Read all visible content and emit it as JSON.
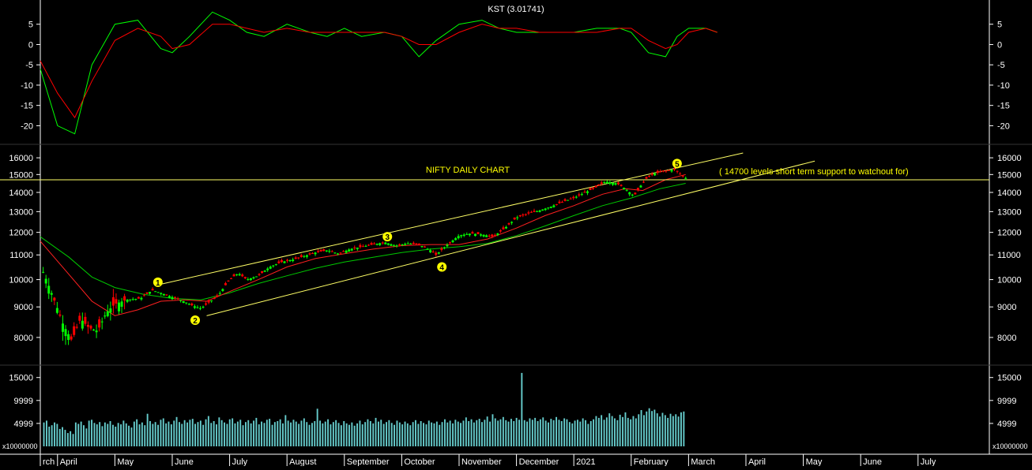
{
  "colors": {
    "background": "#000000",
    "axis": "#ffffff",
    "up_candle": "#00ff00",
    "down_candle": "#ff0000",
    "kst_line": "#00ff00",
    "kst_signal": "#ff0000",
    "ma_short": "#ff2020",
    "ma_long": "#00c800",
    "channel": "#ffff66",
    "volume": "#66cccc",
    "annotation": "#ffff00"
  },
  "chart_data": [
    {
      "type": "line",
      "panel": "kst",
      "title": "KST (3.01741)",
      "ylim": [
        -24,
        10
      ],
      "yticks": [
        5,
        0,
        -5,
        -10,
        -15,
        -20
      ],
      "x_months": [
        2.7,
        3,
        3.3,
        3.6,
        4,
        4.4,
        4.8,
        5,
        5.3,
        5.7,
        6,
        6.3,
        6.6,
        7,
        7.4,
        7.7,
        8,
        8.3,
        8.7,
        9,
        9.3,
        9.6,
        10,
        10.4,
        10.7,
        11,
        11.4,
        11.8,
        12,
        12.4,
        12.8,
        13,
        13.3,
        13.6,
        13.8,
        14,
        14.3,
        14.5
      ],
      "series": [
        {
          "values": [
            -6,
            -20,
            -22,
            -5,
            5,
            6,
            -1,
            -2,
            2,
            8,
            6,
            3,
            2,
            5,
            3,
            2,
            4,
            2,
            3,
            2,
            -3,
            1,
            5,
            6,
            4,
            3,
            3,
            3,
            3,
            4,
            4,
            3,
            -2,
            -3,
            2,
            4,
            4,
            3
          ]
        },
        {
          "values": [
            -4,
            -12,
            -18,
            -9,
            1,
            4,
            2,
            -1,
            0,
            5,
            5,
            4,
            3,
            4,
            3,
            3,
            3,
            3,
            3,
            2,
            0,
            0,
            3,
            5,
            4,
            4,
            3,
            3,
            3,
            3,
            4,
            4,
            1,
            -1,
            0,
            3,
            4,
            3
          ]
        }
      ]
    },
    {
      "type": "candlestick",
      "panel": "price",
      "title": "NIFTY DAILY CHART",
      "ylim": [
        7300,
        16600
      ],
      "yscale": "log",
      "yticks": [
        16000,
        15000,
        14000,
        13000,
        12000,
        11000,
        10000,
        9000,
        8000
      ],
      "points": [
        {
          "m": 2.75,
          "v": 10300
        },
        {
          "m": 2.95,
          "v": 9200
        },
        {
          "m": 3.1,
          "v": 8400
        },
        {
          "m": 3.25,
          "v": 7900
        },
        {
          "m": 3.4,
          "v": 8600
        },
        {
          "m": 3.55,
          "v": 8300
        },
        {
          "m": 3.7,
          "v": 8200
        },
        {
          "m": 3.85,
          "v": 8800
        },
        {
          "m": 4.0,
          "v": 9100
        },
        {
          "m": 4.2,
          "v": 9250
        },
        {
          "m": 4.45,
          "v": 9300
        },
        {
          "m": 4.65,
          "v": 9600
        },
        {
          "m": 4.8,
          "v": 9500
        },
        {
          "m": 5.0,
          "v": 9350
        },
        {
          "m": 5.2,
          "v": 9200
        },
        {
          "m": 5.35,
          "v": 9050
        },
        {
          "m": 5.5,
          "v": 8950
        },
        {
          "m": 5.6,
          "v": 9100
        },
        {
          "m": 5.8,
          "v": 9400
        },
        {
          "m": 6.0,
          "v": 10000
        },
        {
          "m": 6.15,
          "v": 10250
        },
        {
          "m": 6.3,
          "v": 10000
        },
        {
          "m": 6.5,
          "v": 10150
        },
        {
          "m": 6.7,
          "v": 10500
        },
        {
          "m": 6.9,
          "v": 10700
        },
        {
          "m": 7.1,
          "v": 10800
        },
        {
          "m": 7.3,
          "v": 10950
        },
        {
          "m": 7.5,
          "v": 11100
        },
        {
          "m": 7.7,
          "v": 11200
        },
        {
          "m": 7.9,
          "v": 11050
        },
        {
          "m": 8.1,
          "v": 11250
        },
        {
          "m": 8.3,
          "v": 11350
        },
        {
          "m": 8.5,
          "v": 11450
        },
        {
          "m": 8.7,
          "v": 11550
        },
        {
          "m": 8.9,
          "v": 11400
        },
        {
          "m": 9.1,
          "v": 11500
        },
        {
          "m": 9.3,
          "v": 11450
        },
        {
          "m": 9.5,
          "v": 11200
        },
        {
          "m": 9.6,
          "v": 11000
        },
        {
          "m": 9.8,
          "v": 11450
        },
        {
          "m": 10.0,
          "v": 11850
        },
        {
          "m": 10.2,
          "v": 11950
        },
        {
          "m": 10.4,
          "v": 11900
        },
        {
          "m": 10.6,
          "v": 11800
        },
        {
          "m": 10.8,
          "v": 12200
        },
        {
          "m": 11.0,
          "v": 12700
        },
        {
          "m": 11.2,
          "v": 12900
        },
        {
          "m": 11.4,
          "v": 13050
        },
        {
          "m": 11.6,
          "v": 13250
        },
        {
          "m": 11.8,
          "v": 13500
        },
        {
          "m": 12.0,
          "v": 13700
        },
        {
          "m": 12.2,
          "v": 14000
        },
        {
          "m": 12.4,
          "v": 14300
        },
        {
          "m": 12.55,
          "v": 14600
        },
        {
          "m": 12.75,
          "v": 14500
        },
        {
          "m": 12.9,
          "v": 14200
        },
        {
          "m": 13.05,
          "v": 13800
        },
        {
          "m": 13.15,
          "v": 14300
        },
        {
          "m": 13.3,
          "v": 14900
        },
        {
          "m": 13.45,
          "v": 15100
        },
        {
          "m": 13.6,
          "v": 15200
        },
        {
          "m": 13.75,
          "v": 15300
        },
        {
          "m": 13.85,
          "v": 15050
        },
        {
          "m": 13.95,
          "v": 14800
        }
      ],
      "ma_short": [
        [
          2.7,
          11600
        ],
        [
          3.2,
          10200
        ],
        [
          3.6,
          9200
        ],
        [
          4.0,
          8700
        ],
        [
          4.4,
          8900
        ],
        [
          4.8,
          9200
        ],
        [
          5.2,
          9250
        ],
        [
          5.6,
          9200
        ],
        [
          6.0,
          9550
        ],
        [
          6.5,
          10000
        ],
        [
          7.0,
          10500
        ],
        [
          7.5,
          10850
        ],
        [
          8.0,
          11050
        ],
        [
          8.5,
          11250
        ],
        [
          9.0,
          11400
        ],
        [
          9.5,
          11450
        ],
        [
          10.0,
          11450
        ],
        [
          10.5,
          11700
        ],
        [
          11.0,
          12200
        ],
        [
          11.5,
          12800
        ],
        [
          12.0,
          13300
        ],
        [
          12.5,
          13900
        ],
        [
          12.9,
          14200
        ],
        [
          13.2,
          14100
        ],
        [
          13.6,
          14700
        ],
        [
          13.95,
          15000
        ]
      ],
      "ma_long": [
        [
          2.7,
          11800
        ],
        [
          3.2,
          10900
        ],
        [
          3.6,
          10100
        ],
        [
          4.0,
          9700
        ],
        [
          4.5,
          9450
        ],
        [
          5.0,
          9300
        ],
        [
          5.5,
          9250
        ],
        [
          6.0,
          9500
        ],
        [
          6.5,
          9850
        ],
        [
          7.0,
          10150
        ],
        [
          7.5,
          10450
        ],
        [
          8.0,
          10700
        ],
        [
          8.5,
          10900
        ],
        [
          9.0,
          11100
        ],
        [
          9.5,
          11250
        ],
        [
          10.0,
          11350
        ],
        [
          10.5,
          11500
        ],
        [
          11.0,
          11850
        ],
        [
          11.5,
          12300
        ],
        [
          12.0,
          12800
        ],
        [
          12.5,
          13300
        ],
        [
          13.0,
          13700
        ],
        [
          13.5,
          14200
        ],
        [
          13.95,
          14500
        ]
      ],
      "channel_upper": [
        [
          4.75,
          9800
        ],
        [
          14.95,
          16300
        ]
      ],
      "channel_lower": [
        [
          5.6,
          8700
        ],
        [
          16.2,
          15800
        ]
      ],
      "support_level": 14700,
      "wave_labels": [
        {
          "text": "1",
          "m": 4.75,
          "v": 9900
        },
        {
          "text": "2",
          "m": 5.4,
          "v": 8550
        },
        {
          "text": "3",
          "m": 8.75,
          "v": 11800
        },
        {
          "text": "4",
          "m": 9.7,
          "v": 10500
        },
        {
          "text": "5",
          "m": 13.8,
          "v": 15650
        }
      ],
      "annotation": "( 14700 levels short term support to watchout for)"
    },
    {
      "type": "bar",
      "panel": "volume",
      "ylim": [
        0,
        16500
      ],
      "yticks": [
        15000,
        9999,
        4999
      ],
      "multiplier_label": "x10000000",
      "values": [
        5200,
        5600,
        4300,
        4600,
        5200,
        4900,
        3800,
        4200,
        3600,
        2900,
        3300,
        2700,
        5200,
        4900,
        5400,
        4600,
        3900,
        5600,
        5800,
        5100,
        4800,
        5300,
        4400,
        5200,
        4900,
        5500,
        4700,
        4300,
        5100,
        4800,
        5600,
        5000,
        4500,
        4100,
        5400,
        5900,
        4800,
        5200,
        4600,
        7100,
        5500,
        4900,
        5300,
        4700,
        5800,
        6100,
        5000,
        5400,
        4800,
        5600,
        6400,
        5300,
        4900,
        5700,
        5200,
        5800,
        6000,
        4900,
        5300,
        5600,
        4700,
        5900,
        6600,
        5100,
        5500,
        4800,
        6300,
        5700,
        5200,
        4900,
        5900,
        6100,
        5000,
        5400,
        5800,
        4600,
        5300,
        5700,
        5000,
        5600,
        6200,
        4800,
        5400,
        5100,
        5800,
        6000,
        4700,
        5300,
        5500,
        5900,
        5000,
        6800,
        5600,
        5200,
        5800,
        5400,
        4900,
        5600,
        6100,
        5300,
        4700,
        5100,
        5500,
        8200,
        5600,
        5000,
        5400,
        5900,
        4800,
        5300,
        5700,
        5100,
        4600,
        5500,
        5000,
        4700,
        5200,
        4500,
        5000,
        5600,
        4800,
        5300,
        5900,
        5500,
        5000,
        6200,
        5400,
        5800,
        4900,
        5300,
        5700,
        5100,
        4700,
        5600,
        5200,
        4800,
        5400,
        5000,
        4600,
        5300,
        5700,
        4900,
        5500,
        5100,
        4800,
        5600,
        5200,
        5000,
        5400,
        4700,
        5300,
        5900,
        5200,
        5600,
        5000,
        5800,
        5400,
        5100,
        5600,
        6300,
        5500,
        5900,
        5200,
        5700,
        6000,
        5300,
        5800,
        6500,
        5400,
        7000,
        6100,
        5600,
        5900,
        6400,
        5700,
        5400,
        6000,
        5500,
        6200,
        5800,
        16000,
        5700,
        5400,
        6100,
        5800,
        6200,
        5500,
        5900,
        6300,
        5600,
        5200,
        6000,
        5700,
        6400,
        5800,
        5500,
        6100,
        5900,
        5300,
        5000,
        5600,
        5800,
        5400,
        6100,
        5700,
        4900,
        5500,
        5900,
        6600,
        6200,
        6800,
        5800,
        6300,
        7200,
        6600,
        6100,
        5700,
        6900,
        6400,
        7400,
        6200,
        5900,
        6600,
        6100,
        7000,
        7900,
        6800,
        7600,
        8300,
        7700,
        8000,
        7200,
        6500,
        7300,
        6800,
        6200,
        7100,
        6600,
        7000,
        6500,
        7400,
        7600
      ]
    }
  ],
  "x_axis": {
    "labels": [
      "rch",
      "April",
      "May",
      "June",
      "July",
      "August",
      "September",
      "October",
      "November",
      "December",
      "2021",
      "February",
      "March",
      "April",
      "May",
      "June",
      "July"
    ]
  }
}
